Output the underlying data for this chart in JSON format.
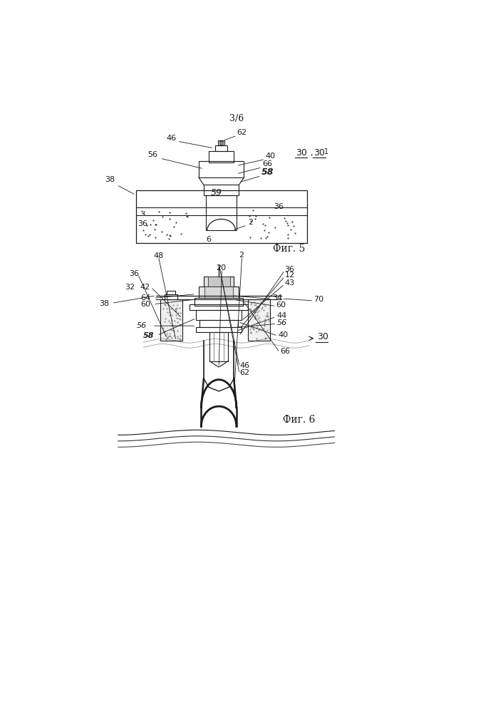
{
  "page_label": "3/6",
  "fig5_label": "Фиг. 5",
  "fig6_label": "Фиг. 6",
  "bg_color": "#ffffff",
  "line_color": "#1a1a1a",
  "text_color": "#1a1a1a"
}
